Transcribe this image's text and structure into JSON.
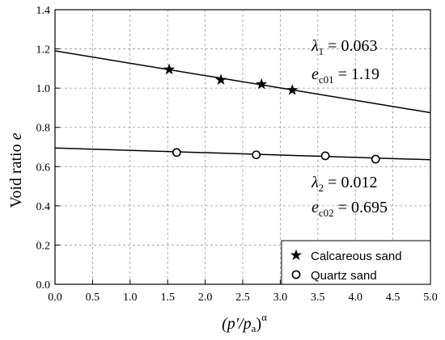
{
  "chart_data": {
    "type": "scatter",
    "xlabel": {
      "base": "(p′/p",
      "sub": "a",
      "close": ")",
      "sup": "α"
    },
    "ylabel": {
      "text": "Void ratio ",
      "var": "e"
    },
    "xlim": [
      0.0,
      5.0
    ],
    "ylim": [
      0.0,
      1.4
    ],
    "x_ticks": [
      "0.0",
      "0.5",
      "1.0",
      "1.5",
      "2.0",
      "2.5",
      "3.0",
      "3.5",
      "4.0",
      "4.5",
      "5.0"
    ],
    "y_ticks": [
      "0.0",
      "0.2",
      "0.4",
      "0.6",
      "0.8",
      "1.0",
      "1.2",
      "1.4"
    ],
    "grid": true,
    "legend_position": "bottom-right",
    "series": [
      {
        "name": "Calcareous sand",
        "marker": "star",
        "points": [
          {
            "x": 1.52,
            "y": 1.095
          },
          {
            "x": 2.21,
            "y": 1.042
          },
          {
            "x": 2.75,
            "y": 1.02
          },
          {
            "x": 3.16,
            "y": 0.99
          }
        ],
        "fit": {
          "lambda": 0.063,
          "e0": 1.19
        }
      },
      {
        "name": "Quartz sand",
        "marker": "open-circle",
        "points": [
          {
            "x": 1.62,
            "y": 0.672
          },
          {
            "x": 2.68,
            "y": 0.66
          },
          {
            "x": 3.6,
            "y": 0.655
          },
          {
            "x": 4.27,
            "y": 0.638
          }
        ],
        "fit": {
          "lambda": 0.012,
          "e0": 0.695
        }
      }
    ],
    "annotations": [
      {
        "symbol": "λ",
        "sub": "1",
        "value": " = 0.063"
      },
      {
        "symbol": "e",
        "sub": "c01",
        "value": " = 1.19"
      },
      {
        "symbol": "λ",
        "sub": "2",
        "value": " = 0.012"
      },
      {
        "symbol": "e",
        "sub": "c02",
        "value": " = 0.695"
      }
    ]
  }
}
